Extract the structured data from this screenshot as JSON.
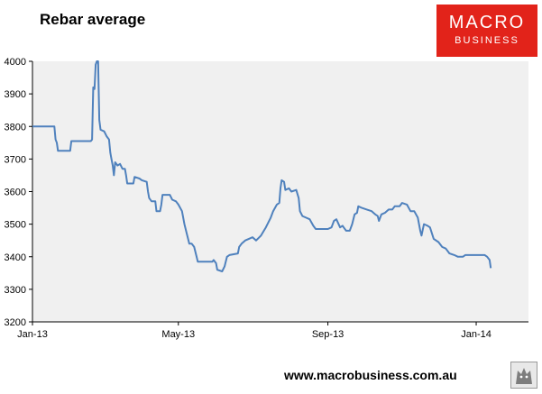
{
  "title": "Rebar average",
  "logo": {
    "line1": "MACRO",
    "line2": "BUSINESS"
  },
  "footer_url": "www.macrobusiness.com.au",
  "colors": {
    "plot_bg": "#f0f0f0",
    "line": "#4f81bd",
    "logo_bg": "#e2231a"
  },
  "chart_data": {
    "type": "line",
    "title": "Rebar average",
    "xlabel": "",
    "ylabel": "",
    "ylim": [
      3200,
      4000
    ],
    "yticks": [
      3200,
      3300,
      3400,
      3500,
      3600,
      3700,
      3800,
      3900,
      4000
    ],
    "x_tick_labels": [
      "Jan-13",
      "May-13",
      "Sep-13",
      "Jan-14"
    ],
    "x_tick_dates": [
      "2013-01-01",
      "2013-05-01",
      "2013-09-01",
      "2014-01-01"
    ],
    "x_range": [
      "2013-01-01",
      "2014-02-13"
    ],
    "grid": false,
    "legend": "none",
    "series": [
      {
        "points": [
          [
            "2013-01-01",
            3800
          ],
          [
            "2013-01-19",
            3800
          ],
          [
            "2013-01-20",
            3760
          ],
          [
            "2013-01-21",
            3750
          ],
          [
            "2013-01-22",
            3725
          ],
          [
            "2013-02-01",
            3725
          ],
          [
            "2013-02-02",
            3755
          ],
          [
            "2013-02-18",
            3755
          ],
          [
            "2013-02-19",
            3760
          ],
          [
            "2013-02-20",
            3920
          ],
          [
            "2013-02-21",
            3915
          ],
          [
            "2013-02-22",
            3990
          ],
          [
            "2013-02-23",
            4000
          ],
          [
            "2013-02-24",
            4000
          ],
          [
            "2013-02-25",
            3820
          ],
          [
            "2013-02-26",
            3790
          ],
          [
            "2013-03-01",
            3785
          ],
          [
            "2013-03-03",
            3770
          ],
          [
            "2013-03-05",
            3760
          ],
          [
            "2013-03-06",
            3720
          ],
          [
            "2013-03-07",
            3700
          ],
          [
            "2013-03-08",
            3680
          ],
          [
            "2013-03-09",
            3650
          ],
          [
            "2013-03-10",
            3690
          ],
          [
            "2013-03-12",
            3680
          ],
          [
            "2013-03-14",
            3685
          ],
          [
            "2013-03-16",
            3670
          ],
          [
            "2013-03-18",
            3670
          ],
          [
            "2013-03-19",
            3650
          ],
          [
            "2013-03-20",
            3625
          ],
          [
            "2013-03-25",
            3625
          ],
          [
            "2013-03-26",
            3645
          ],
          [
            "2013-03-30",
            3640
          ],
          [
            "2013-04-01",
            3635
          ],
          [
            "2013-04-05",
            3630
          ],
          [
            "2013-04-06",
            3600
          ],
          [
            "2013-04-07",
            3580
          ],
          [
            "2013-04-09",
            3570
          ],
          [
            "2013-04-12",
            3570
          ],
          [
            "2013-04-13",
            3540
          ],
          [
            "2013-04-16",
            3540
          ],
          [
            "2013-04-17",
            3560
          ],
          [
            "2013-04-18",
            3590
          ],
          [
            "2013-04-24",
            3590
          ],
          [
            "2013-04-26",
            3575
          ],
          [
            "2013-04-29",
            3570
          ],
          [
            "2013-05-01",
            3560
          ],
          [
            "2013-05-04",
            3540
          ],
          [
            "2013-05-06",
            3500
          ],
          [
            "2013-05-08",
            3470
          ],
          [
            "2013-05-10",
            3440
          ],
          [
            "2013-05-12",
            3440
          ],
          [
            "2013-05-14",
            3430
          ],
          [
            "2013-05-16",
            3400
          ],
          [
            "2013-05-17",
            3385
          ],
          [
            "2013-05-29",
            3385
          ],
          [
            "2013-05-30",
            3390
          ],
          [
            "2013-06-01",
            3380
          ],
          [
            "2013-06-02",
            3360
          ],
          [
            "2013-06-06",
            3355
          ],
          [
            "2013-06-08",
            3370
          ],
          [
            "2013-06-10",
            3400
          ],
          [
            "2013-06-12",
            3405
          ],
          [
            "2013-06-19",
            3410
          ],
          [
            "2013-06-20",
            3430
          ],
          [
            "2013-06-22",
            3440
          ],
          [
            "2013-06-25",
            3450
          ],
          [
            "2013-06-28",
            3455
          ],
          [
            "2013-07-01",
            3460
          ],
          [
            "2013-07-04",
            3450
          ],
          [
            "2013-07-08",
            3465
          ],
          [
            "2013-07-12",
            3490
          ],
          [
            "2013-07-16",
            3520
          ],
          [
            "2013-07-18",
            3540
          ],
          [
            "2013-07-21",
            3560
          ],
          [
            "2013-07-23",
            3565
          ],
          [
            "2013-07-24",
            3610
          ],
          [
            "2013-07-25",
            3635
          ],
          [
            "2013-07-27",
            3630
          ],
          [
            "2013-07-28",
            3605
          ],
          [
            "2013-07-31",
            3610
          ],
          [
            "2013-08-02",
            3600
          ],
          [
            "2013-08-06",
            3605
          ],
          [
            "2013-08-08",
            3580
          ],
          [
            "2013-08-09",
            3540
          ],
          [
            "2013-08-11",
            3525
          ],
          [
            "2013-08-14",
            3520
          ],
          [
            "2013-08-17",
            3515
          ],
          [
            "2013-08-20",
            3495
          ],
          [
            "2013-08-22",
            3485
          ],
          [
            "2013-09-01",
            3485
          ],
          [
            "2013-09-04",
            3490
          ],
          [
            "2013-09-06",
            3510
          ],
          [
            "2013-09-08",
            3515
          ],
          [
            "2013-09-11",
            3490
          ],
          [
            "2013-09-13",
            3495
          ],
          [
            "2013-09-16",
            3480
          ],
          [
            "2013-09-19",
            3480
          ],
          [
            "2013-09-21",
            3500
          ],
          [
            "2013-09-23",
            3530
          ],
          [
            "2013-09-25",
            3535
          ],
          [
            "2013-09-26",
            3555
          ],
          [
            "2013-09-29",
            3550
          ],
          [
            "2013-10-03",
            3545
          ],
          [
            "2013-10-07",
            3540
          ],
          [
            "2013-10-10",
            3530
          ],
          [
            "2013-10-12",
            3525
          ],
          [
            "2013-10-13",
            3510
          ],
          [
            "2013-10-15",
            3530
          ],
          [
            "2013-10-18",
            3535
          ],
          [
            "2013-10-21",
            3545
          ],
          [
            "2013-10-24",
            3545
          ],
          [
            "2013-10-26",
            3555
          ],
          [
            "2013-10-30",
            3555
          ],
          [
            "2013-11-01",
            3565
          ],
          [
            "2013-11-05",
            3560
          ],
          [
            "2013-11-08",
            3540
          ],
          [
            "2013-11-11",
            3540
          ],
          [
            "2013-11-14",
            3520
          ],
          [
            "2013-11-16",
            3480
          ],
          [
            "2013-11-17",
            3465
          ],
          [
            "2013-11-19",
            3500
          ],
          [
            "2013-11-22",
            3495
          ],
          [
            "2013-11-24",
            3490
          ],
          [
            "2013-11-27",
            3455
          ],
          [
            "2013-12-01",
            3445
          ],
          [
            "2013-12-04",
            3430
          ],
          [
            "2013-12-07",
            3425
          ],
          [
            "2013-12-10",
            3410
          ],
          [
            "2013-12-14",
            3405
          ],
          [
            "2013-12-17",
            3400
          ],
          [
            "2013-12-21",
            3400
          ],
          [
            "2013-12-23",
            3405
          ],
          [
            "2014-01-08",
            3405
          ],
          [
            "2014-01-10",
            3400
          ],
          [
            "2014-01-12",
            3390
          ],
          [
            "2014-01-13",
            3365
          ]
        ]
      }
    ]
  }
}
